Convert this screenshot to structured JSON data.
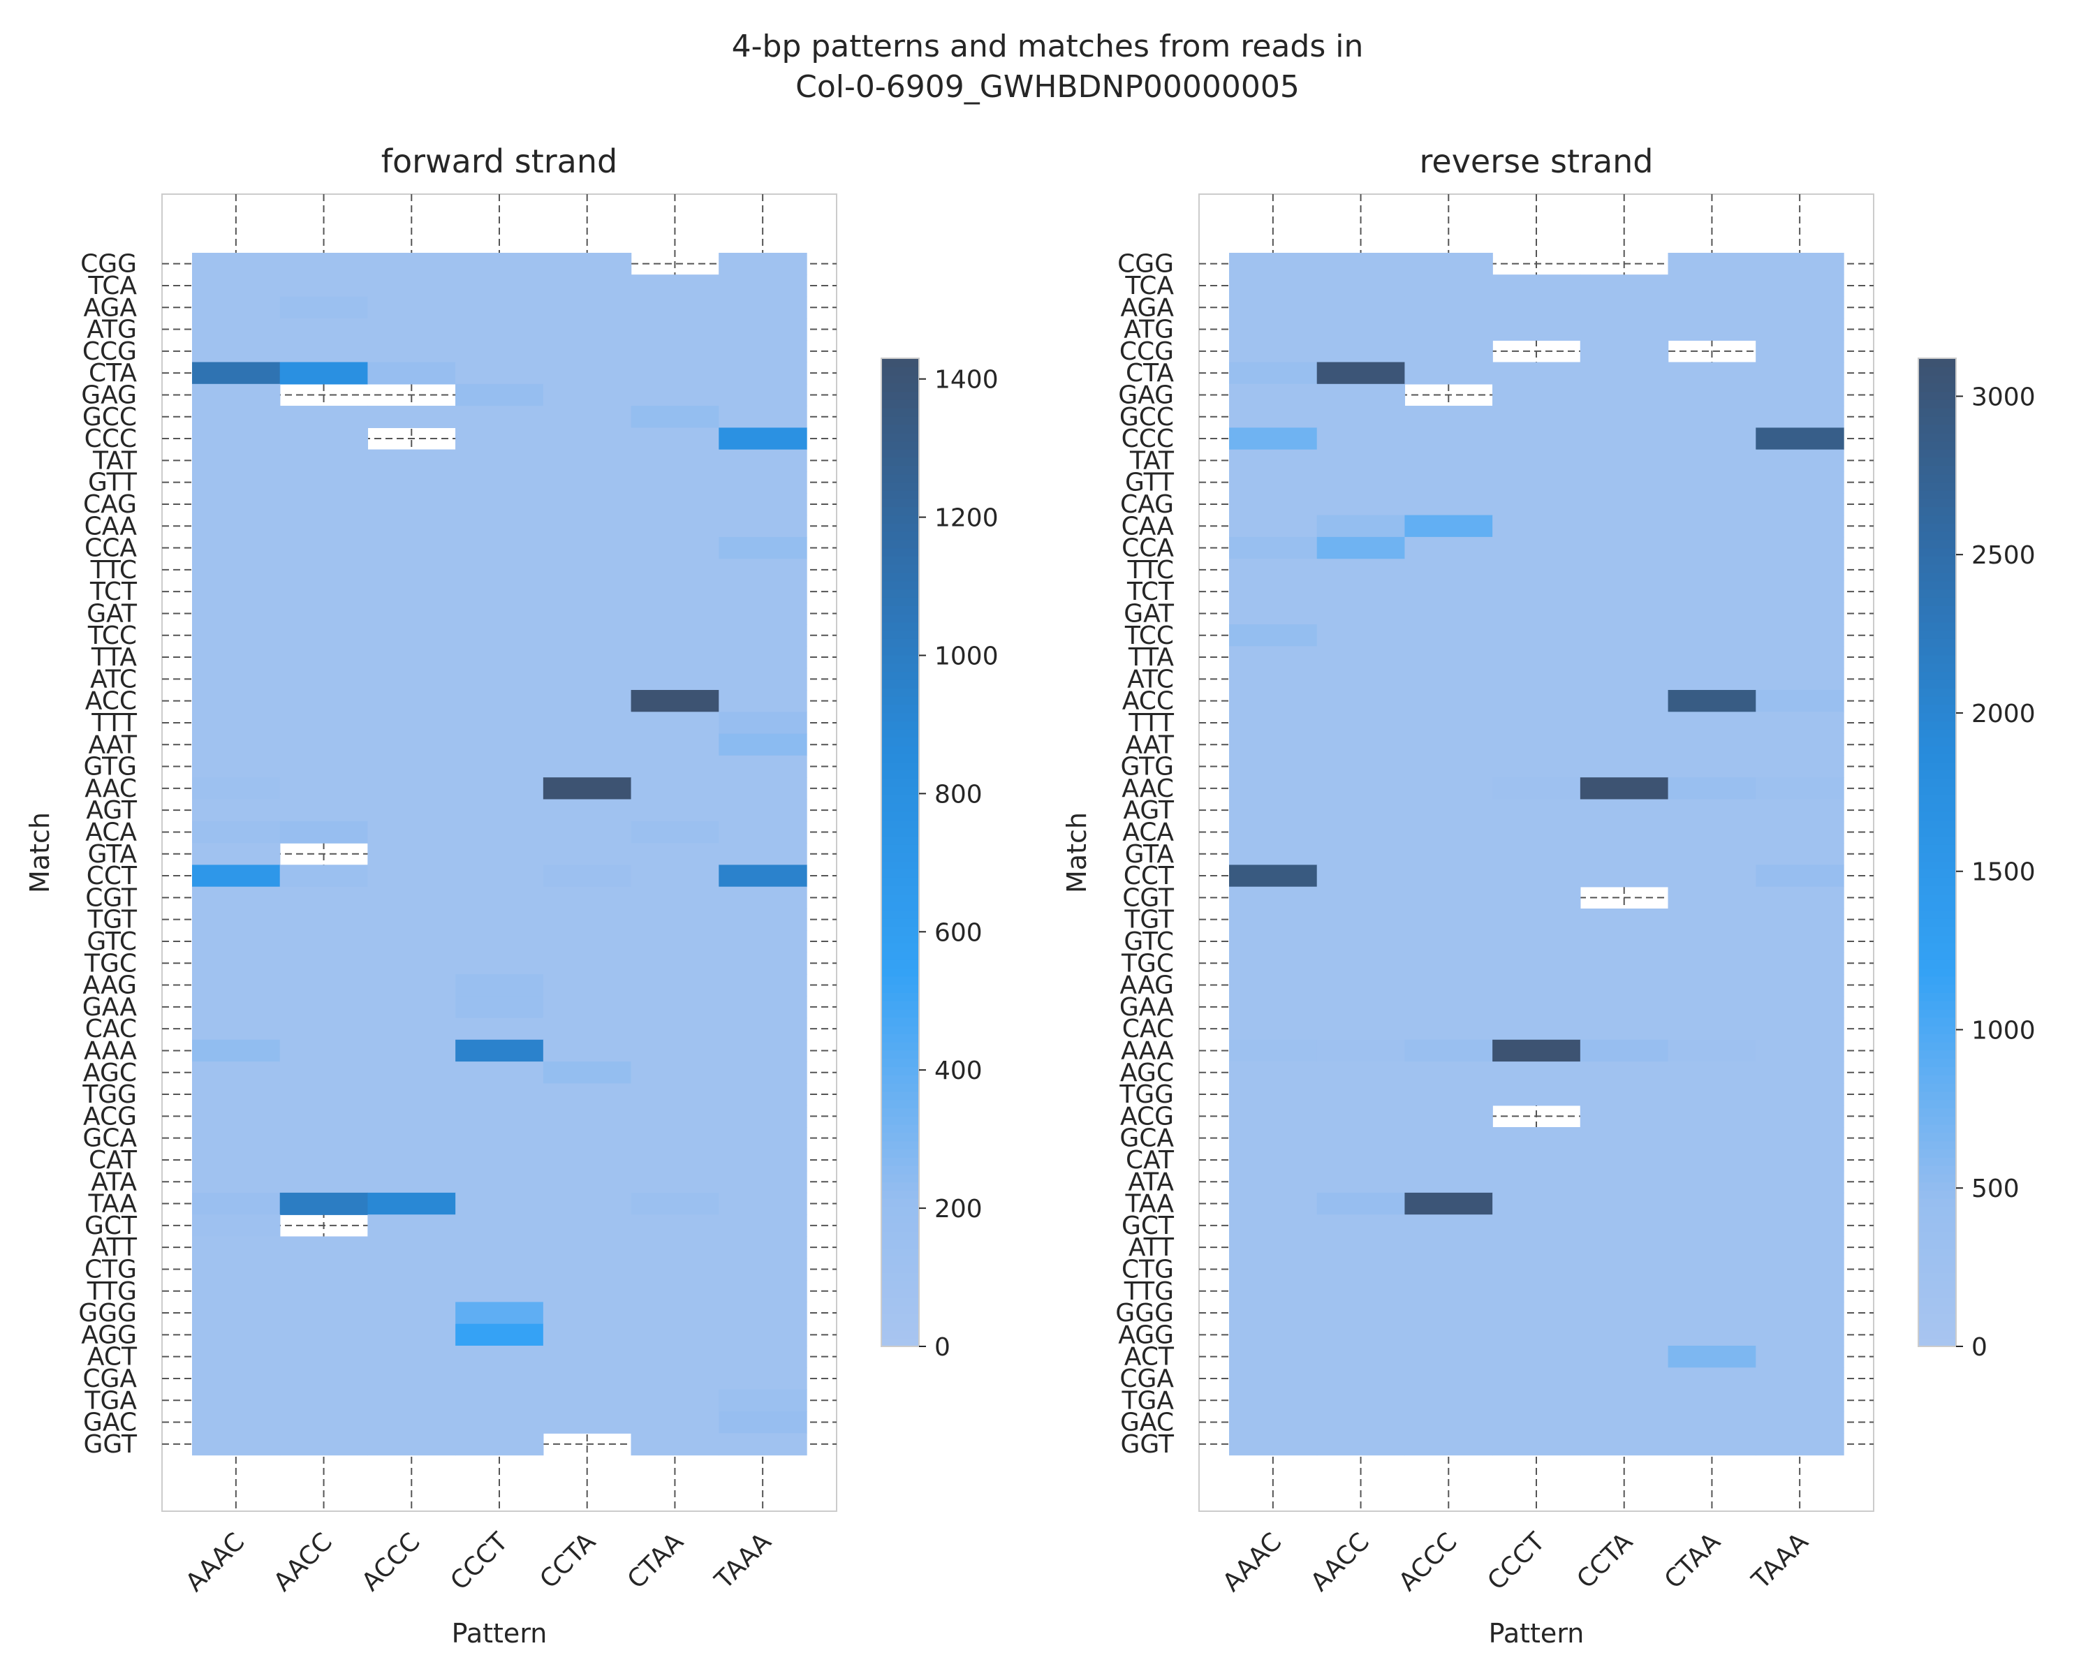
{
  "figure_title": "4-bp patterns and matches from reads in\nCol-0-6909_GWHBDNP00000005",
  "chart_data": [
    {
      "type": "heatmap",
      "title": "forward strand",
      "xlabel": "Pattern",
      "ylabel": "Match",
      "x_categories": [
        "AAAC",
        "AACC",
        "ACCC",
        "CCCT",
        "CCTA",
        "CTAA",
        "TAAA"
      ],
      "y_categories": [
        "CGG",
        "TCA",
        "AGA",
        "ATG",
        "CCG",
        "CTA",
        "GAG",
        "GCC",
        "CCC",
        "TAT",
        "GTT",
        "CAG",
        "CAA",
        "CCA",
        "TTC",
        "TCT",
        "GAT",
        "TCC",
        "TTA",
        "ATC",
        "ACC",
        "TTT",
        "AAT",
        "GTG",
        "AAC",
        "AGT",
        "ACA",
        "GTA",
        "CCT",
        "CGT",
        "TGT",
        "GTC",
        "TGC",
        "AAG",
        "GAA",
        "CAC",
        "AAA",
        "AGC",
        "TGG",
        "ACG",
        "GCA",
        "CAT",
        "ATA",
        "TAA",
        "GCT",
        "ATT",
        "CTG",
        "TTG",
        "GGG",
        "AGG",
        "ACT",
        "CGA",
        "TGA",
        "GAC",
        "GGT"
      ],
      "colorbar": {
        "min": 0,
        "max": 1430,
        "ticks": [
          0,
          200,
          400,
          600,
          800,
          1000,
          1200,
          1400
        ]
      },
      "grid": true,
      "missing": [
        [
          "CGG",
          "CTAA"
        ],
        [
          "GAG",
          "AACC"
        ],
        [
          "GAG",
          "ACCC"
        ],
        [
          "CCC",
          "ACCC"
        ],
        [
          "GTA",
          "AACC"
        ],
        [
          "GCT",
          "AACC"
        ],
        [
          "GGT",
          "CCTA"
        ]
      ],
      "values": {
        "AAAC": {
          "CTA": 1100,
          "CCT": 700,
          "AAA": 230,
          "GCT": 120,
          "TAA": 170,
          "ACA": 150,
          "AAC": 130
        },
        "AACC": {
          "CTA": 800,
          "TAA": 1000,
          "AGA": 150,
          "ACA": 200,
          "CCT": 150
        },
        "ACCC": {
          "TAA": 900,
          "CTA": 200
        },
        "CCCT": {
          "AAA": 950,
          "GGG": 400,
          "AGG": 540,
          "GAG": 210,
          "AAG": 180,
          "GAA": 180
        },
        "CCTA": {
          "AAC": 1420,
          "AGC": 220,
          "CCT": 140
        },
        "CTAA": {
          "ACC": 1420,
          "GCC": 220,
          "ACA": 150,
          "TAA": 150
        },
        "TAAA": {
          "CCC": 780,
          "CCT": 950,
          "AAT": 250,
          "CCA": 220,
          "TTT": 200,
          "GAC": 200,
          "TGA": 160
        }
      }
    },
    {
      "type": "heatmap",
      "title": "reverse strand",
      "xlabel": "Pattern",
      "ylabel": "Match",
      "x_categories": [
        "AAAC",
        "AACC",
        "ACCC",
        "CCCT",
        "CCTA",
        "CTAA",
        "TAAA"
      ],
      "y_categories": [
        "CGG",
        "TCA",
        "AGA",
        "ATG",
        "CCG",
        "CTA",
        "GAG",
        "GCC",
        "CCC",
        "TAT",
        "GTT",
        "CAG",
        "CAA",
        "CCA",
        "TTC",
        "TCT",
        "GAT",
        "TCC",
        "TTA",
        "ATC",
        "ACC",
        "TTT",
        "AAT",
        "GTG",
        "AAC",
        "AGT",
        "ACA",
        "GTA",
        "CCT",
        "CGT",
        "TGT",
        "GTC",
        "TGC",
        "AAG",
        "GAA",
        "CAC",
        "AAA",
        "AGC",
        "TGG",
        "ACG",
        "GCA",
        "CAT",
        "ATA",
        "TAA",
        "GCT",
        "ATT",
        "CTG",
        "TTG",
        "GGG",
        "AGG",
        "ACT",
        "CGA",
        "TGA",
        "GAC",
        "GGT"
      ],
      "colorbar": {
        "min": 0,
        "max": 3120,
        "ticks": [
          0,
          500,
          1000,
          1500,
          2000,
          2500,
          3000
        ]
      },
      "grid": true,
      "missing": [
        [
          "CGG",
          "CCCT"
        ],
        [
          "CGG",
          "CCTA"
        ],
        [
          "CCG",
          "CCCT"
        ],
        [
          "CCG",
          "CTAA"
        ],
        [
          "GAG",
          "ACCC"
        ],
        [
          "CGT",
          "CCTA"
        ],
        [
          "ACG",
          "CCCT"
        ]
      ],
      "values": {
        "AAAC": {
          "CCC": 750,
          "CTA": 420,
          "CCA": 420,
          "TCC": 480,
          "CCT": 2950,
          "AAA": 280
        },
        "AACC": {
          "CTA": 3050,
          "CCA": 750,
          "CAA": 480,
          "TAA": 450,
          "AAA": 250
        },
        "ACCC": {
          "CAA": 850,
          "TAA": 3050,
          "AAA": 400
        },
        "CCCT": {
          "AAA": 3100,
          "AAC": 250
        },
        "CCTA": {
          "AAC": 3100,
          "AAA": 450
        },
        "CTAA": {
          "ACC": 2900,
          "ACT": 650,
          "AAC": 400,
          "AAA": 250
        },
        "TAAA": {
          "CCC": 2850,
          "CCT": 450,
          "ACC": 400,
          "AAC": 280
        }
      }
    }
  ]
}
